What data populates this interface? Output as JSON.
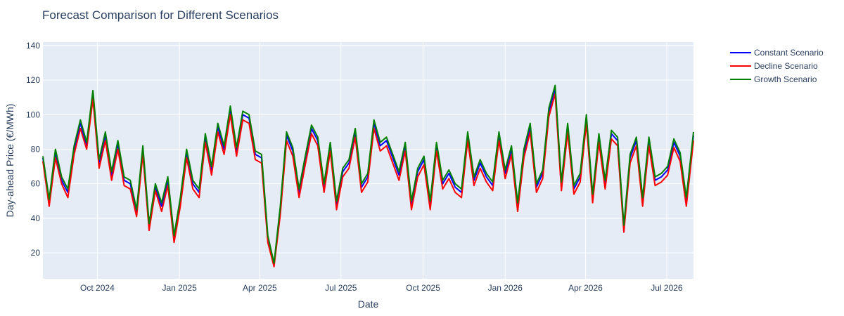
{
  "chart_data": {
    "type": "line",
    "title": "Forecast Comparison for Different Scenarios",
    "xlabel": "Date",
    "ylabel": "Day-ahead Price (€/MWh)",
    "xlim": [
      "2024-08-01",
      "2026-07-31"
    ],
    "ylim": [
      5,
      142
    ],
    "x_ticks": [
      {
        "date": "2024-10-01",
        "label": "Oct 2024"
      },
      {
        "date": "2025-01-01",
        "label": "Jan 2025"
      },
      {
        "date": "2025-04-01",
        "label": "Apr 2025"
      },
      {
        "date": "2025-07-01",
        "label": "Jul 2025"
      },
      {
        "date": "2025-10-01",
        "label": "Oct 2025"
      },
      {
        "date": "2026-01-01",
        "label": "Jan 2026"
      },
      {
        "date": "2026-04-01",
        "label": "Apr 2026"
      },
      {
        "date": "2026-07-01",
        "label": "Jul 2026"
      }
    ],
    "y_ticks": [
      20,
      40,
      60,
      80,
      100,
      120,
      140
    ],
    "grid": true,
    "legend_position": "top-right",
    "background": "#e5ecf6",
    "x": [
      "2024-08-01",
      "2024-08-08",
      "2024-08-15",
      "2024-08-22",
      "2024-08-29",
      "2024-09-05",
      "2024-09-12",
      "2024-09-19",
      "2024-09-26",
      "2024-10-03",
      "2024-10-10",
      "2024-10-17",
      "2024-10-24",
      "2024-10-31",
      "2024-11-07",
      "2024-11-14",
      "2024-11-21",
      "2024-11-28",
      "2024-12-05",
      "2024-12-12",
      "2024-12-19",
      "2024-12-26",
      "2025-01-02",
      "2025-01-09",
      "2025-01-16",
      "2025-01-23",
      "2025-01-30",
      "2025-02-06",
      "2025-02-13",
      "2025-02-20",
      "2025-02-27",
      "2025-03-06",
      "2025-03-13",
      "2025-03-20",
      "2025-03-27",
      "2025-04-03",
      "2025-04-10",
      "2025-04-17",
      "2025-04-24",
      "2025-05-01",
      "2025-05-08",
      "2025-05-15",
      "2025-05-22",
      "2025-05-29",
      "2025-06-05",
      "2025-06-12",
      "2025-06-19",
      "2025-06-26",
      "2025-07-03",
      "2025-07-10",
      "2025-07-17",
      "2025-07-24",
      "2025-07-31",
      "2025-08-07",
      "2025-08-14",
      "2025-08-21",
      "2025-08-28",
      "2025-09-04",
      "2025-09-11",
      "2025-09-18",
      "2025-09-25",
      "2025-10-02",
      "2025-10-09",
      "2025-10-16",
      "2025-10-23",
      "2025-10-30",
      "2025-11-06",
      "2025-11-13",
      "2025-11-20",
      "2025-11-27",
      "2025-12-04",
      "2025-12-11",
      "2025-12-18",
      "2025-12-25",
      "2026-01-01",
      "2026-01-08",
      "2026-01-15",
      "2026-01-22",
      "2026-01-29",
      "2026-02-05",
      "2026-02-12",
      "2026-02-19",
      "2026-02-26",
      "2026-03-05",
      "2026-03-12",
      "2026-03-19",
      "2026-03-26",
      "2026-04-02",
      "2026-04-09",
      "2026-04-16",
      "2026-04-23",
      "2026-04-30",
      "2026-05-07",
      "2026-05-14",
      "2026-05-21",
      "2026-05-28",
      "2026-06-04",
      "2026-06-11",
      "2026-06-18",
      "2026-06-25",
      "2026-07-02",
      "2026-07-09",
      "2026-07-16",
      "2026-07-23",
      "2026-07-31"
    ],
    "series": [
      {
        "name": "Constant Scenario",
        "color": "#0000ff",
        "values": [
          75,
          50,
          78,
          62,
          55,
          80,
          95,
          82,
          112,
          72,
          88,
          65,
          83,
          62,
          60,
          43,
          80,
          35,
          58,
          47,
          62,
          28,
          50,
          78,
          60,
          55,
          87,
          68,
          93,
          80,
          103,
          79,
          100,
          98,
          77,
          75,
          28,
          13,
          45,
          88,
          79,
          55,
          74,
          92,
          85,
          58,
          82,
          48,
          67,
          72,
          90,
          58,
          64,
          95,
          82,
          85,
          75,
          65,
          82,
          48,
          67,
          74,
          48,
          82,
          60,
          66,
          58,
          55,
          88,
          62,
          72,
          64,
          59,
          88,
          66,
          80,
          47,
          78,
          93,
          58,
          66,
          102,
          115,
          59,
          93,
          57,
          64,
          98,
          52,
          87,
          60,
          89,
          85,
          34,
          75,
          85,
          50,
          85,
          62,
          64,
          68,
          84,
          76,
          50,
          88
        ]
      },
      {
        "name": "Decline Scenario",
        "color": "#ff0000",
        "values": [
          73,
          47,
          75,
          60,
          52,
          77,
          92,
          80,
          109,
          69,
          85,
          62,
          80,
          59,
          57,
          41,
          77,
          33,
          56,
          44,
          59,
          26,
          47,
          75,
          57,
          52,
          84,
          65,
          90,
          77,
          100,
          76,
          97,
          95,
          74,
          72,
          26,
          12,
          42,
          85,
          76,
          52,
          71,
          89,
          82,
          55,
          79,
          45,
          64,
          69,
          87,
          55,
          61,
          92,
          79,
          82,
          72,
          62,
          79,
          45,
          64,
          71,
          45,
          79,
          57,
          63,
          55,
          52,
          85,
          59,
          69,
          61,
          56,
          85,
          63,
          77,
          44,
          75,
          90,
          55,
          63,
          99,
          112,
          56,
          90,
          54,
          61,
          95,
          49,
          84,
          57,
          86,
          82,
          32,
          72,
          82,
          47,
          82,
          59,
          61,
          65,
          81,
          73,
          47,
          85
        ]
      },
      {
        "name": "Growth Scenario",
        "color": "#008000",
        "values": [
          76,
          51,
          80,
          64,
          57,
          82,
          97,
          84,
          114,
          74,
          90,
          67,
          85,
          64,
          62,
          45,
          82,
          37,
          60,
          49,
          64,
          30,
          52,
          80,
          62,
          57,
          89,
          70,
          95,
          82,
          105,
          81,
          102,
          100,
          79,
          77,
          30,
          14,
          47,
          90,
          81,
          57,
          76,
          94,
          87,
          60,
          84,
          50,
          69,
          74,
          92,
          60,
          66,
          97,
          84,
          87,
          77,
          67,
          84,
          50,
          69,
          76,
          50,
          84,
          62,
          68,
          60,
          57,
          90,
          64,
          74,
          66,
          61,
          90,
          68,
          82,
          49,
          80,
          95,
          60,
          68,
          104,
          117,
          61,
          95,
          59,
          66,
          100,
          54,
          89,
          62,
          91,
          87,
          36,
          77,
          87,
          52,
          87,
          64,
          66,
          70,
          86,
          78,
          52,
          90
        ]
      }
    ]
  }
}
